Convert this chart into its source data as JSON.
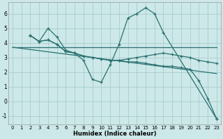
{
  "xlabel": "Humidex (Indice chaleur)",
  "bg_color": "#cce8e8",
  "grid_color": "#aacccc",
  "line_color": "#2a7070",
  "xlim": [
    -0.5,
    23.5
  ],
  "ylim": [
    -1.6,
    6.8
  ],
  "yticks": [
    -1,
    0,
    1,
    2,
    3,
    4,
    5,
    6
  ],
  "xticks": [
    0,
    1,
    2,
    3,
    4,
    5,
    6,
    7,
    8,
    9,
    10,
    11,
    12,
    13,
    14,
    15,
    16,
    17,
    18,
    19,
    20,
    21,
    22,
    23
  ],
  "series": [
    {
      "x": [
        0,
        23
      ],
      "y": [
        3.7,
        3.7
      ]
    },
    {
      "x": [
        2,
        3,
        4,
        5,
        6,
        7,
        8,
        9,
        10,
        11,
        12,
        13,
        14,
        15,
        16,
        17,
        23
      ],
      "y": [
        4.5,
        4.1,
        5.0,
        4.4,
        3.5,
        3.3,
        2.8,
        1.5,
        1.3,
        2.5,
        3.9,
        5.7,
        6.0,
        6.4,
        6.0,
        4.7,
        -1.2
      ]
    },
    {
      "x": [
        2,
        3,
        4,
        5,
        6,
        7,
        8,
        9,
        10,
        11,
        12,
        13,
        14,
        15,
        16,
        17,
        18,
        19,
        20,
        21,
        22,
        23
      ],
      "y": [
        4.5,
        4.1,
        4.2,
        3.9,
        3.4,
        3.3,
        3.1,
        3.0,
        2.9,
        2.8,
        2.8,
        2.9,
        3.0,
        3.1,
        3.2,
        3.3,
        3.2,
        3.1,
        3.0,
        2.8,
        2.7,
        2.6
      ]
    },
    {
      "x": [
        0,
        23
      ],
      "y": [
        3.7,
        1.9
      ]
    },
    {
      "x": [
        2,
        3,
        4,
        5,
        6,
        7,
        8,
        9,
        10,
        11,
        12,
        13,
        14,
        15,
        16,
        17,
        18,
        19,
        20,
        21,
        22,
        23
      ],
      "y": [
        4.5,
        4.1,
        4.2,
        3.9,
        3.4,
        3.3,
        3.1,
        3.0,
        2.9,
        2.8,
        2.8,
        2.7,
        2.7,
        2.6,
        2.5,
        2.4,
        2.4,
        2.3,
        2.2,
        1.4,
        0.2,
        -1.2
      ]
    }
  ]
}
